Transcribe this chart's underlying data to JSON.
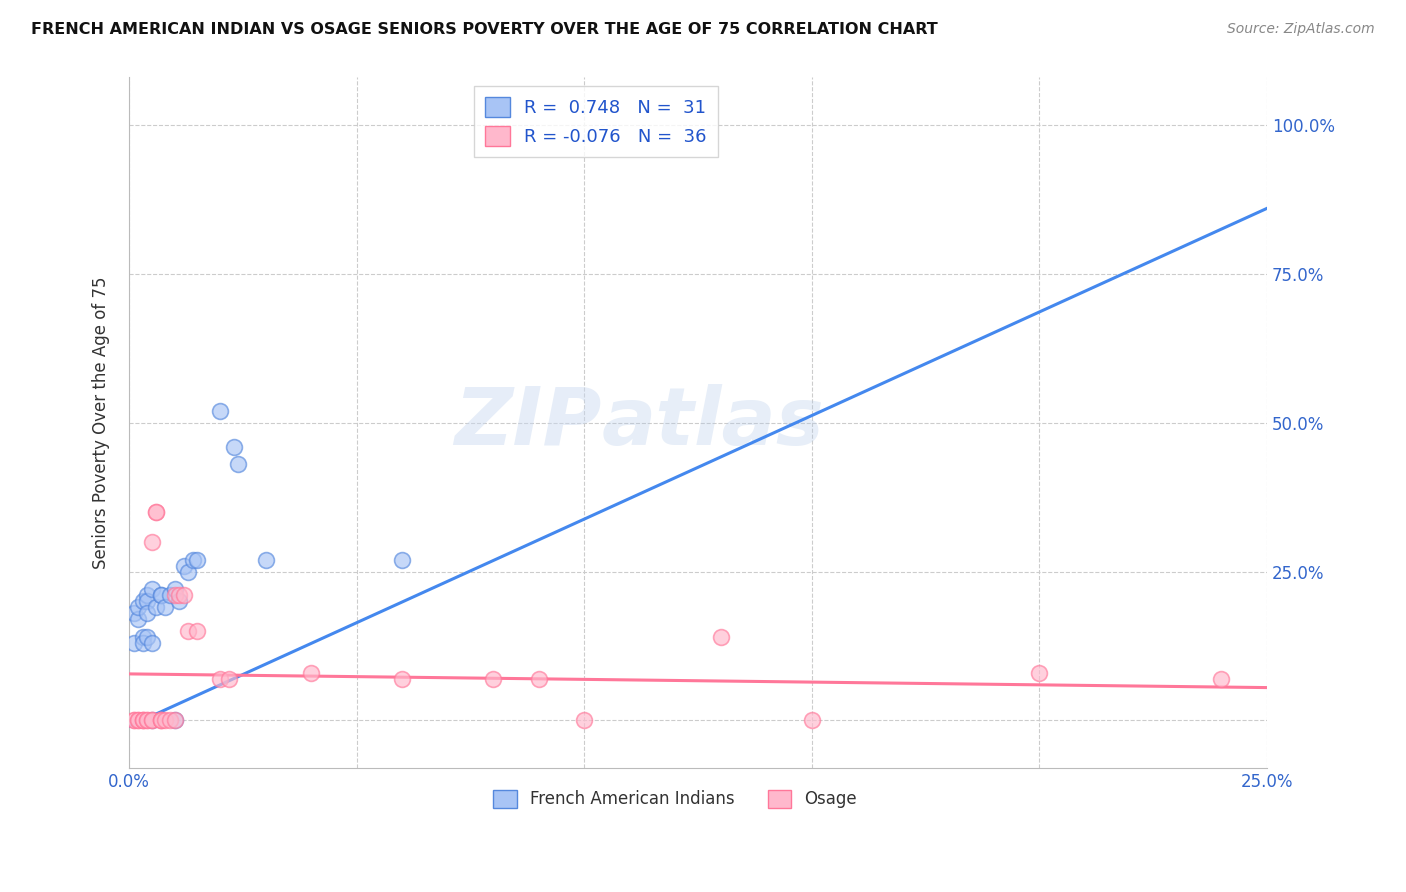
{
  "title": "FRENCH AMERICAN INDIAN VS OSAGE SENIORS POVERTY OVER THE AGE OF 75 CORRELATION CHART",
  "source": "Source: ZipAtlas.com",
  "ylabel": "Seniors Poverty Over the Age of 75",
  "xlim": [
    0.0,
    0.25
  ],
  "ylim": [
    -0.08,
    1.08
  ],
  "watermark_zip": "ZIP",
  "watermark_atlas": "atlas",
  "blue_R": 0.748,
  "blue_N": 31,
  "pink_R": -0.076,
  "pink_N": 36,
  "blue_fill": "#a8c4f5",
  "blue_edge": "#5588dd",
  "pink_fill": "#ffb8cc",
  "pink_edge": "#ff7799",
  "blue_line": "#4488ee",
  "pink_line": "#ff7799",
  "legend_label_blue": "French American Indians",
  "legend_label_pink": "Osage",
  "title_color": "#111111",
  "source_color": "#888888",
  "tick_color": "#3366cc",
  "ylabel_color": "#333333",
  "grid_color": "#cccccc",
  "blue_points": [
    [
      0.001,
      0.13
    ],
    [
      0.001,
      0.18
    ],
    [
      0.002,
      0.17
    ],
    [
      0.002,
      0.19
    ],
    [
      0.003,
      0.14
    ],
    [
      0.003,
      0.2
    ],
    [
      0.003,
      0.13
    ],
    [
      0.004,
      0.21
    ],
    [
      0.004,
      0.2
    ],
    [
      0.004,
      0.18
    ],
    [
      0.004,
      0.14
    ],
    [
      0.005,
      0.22
    ],
    [
      0.005,
      0.13
    ],
    [
      0.005,
      0.0
    ],
    [
      0.006,
      0.19
    ],
    [
      0.007,
      0.21
    ],
    [
      0.007,
      0.21
    ],
    [
      0.008,
      0.19
    ],
    [
      0.009,
      0.21
    ],
    [
      0.01,
      0.22
    ],
    [
      0.01,
      0.0
    ],
    [
      0.011,
      0.2
    ],
    [
      0.012,
      0.26
    ],
    [
      0.013,
      0.25
    ],
    [
      0.014,
      0.27
    ],
    [
      0.015,
      0.27
    ],
    [
      0.02,
      0.52
    ],
    [
      0.023,
      0.46
    ],
    [
      0.024,
      0.43
    ],
    [
      0.03,
      0.27
    ],
    [
      0.06,
      0.27
    ]
  ],
  "pink_points": [
    [
      0.001,
      0.0
    ],
    [
      0.001,
      0.0
    ],
    [
      0.002,
      0.0
    ],
    [
      0.002,
      0.0
    ],
    [
      0.003,
      0.0
    ],
    [
      0.003,
      0.0
    ],
    [
      0.003,
      0.0
    ],
    [
      0.004,
      0.0
    ],
    [
      0.004,
      0.0
    ],
    [
      0.005,
      0.0
    ],
    [
      0.005,
      0.0
    ],
    [
      0.005,
      0.3
    ],
    [
      0.006,
      0.35
    ],
    [
      0.006,
      0.35
    ],
    [
      0.007,
      0.0
    ],
    [
      0.007,
      0.0
    ],
    [
      0.007,
      0.0
    ],
    [
      0.008,
      0.0
    ],
    [
      0.009,
      0.0
    ],
    [
      0.01,
      0.0
    ],
    [
      0.01,
      0.21
    ],
    [
      0.011,
      0.21
    ],
    [
      0.012,
      0.21
    ],
    [
      0.013,
      0.15
    ],
    [
      0.015,
      0.15
    ],
    [
      0.02,
      0.07
    ],
    [
      0.022,
      0.07
    ],
    [
      0.04,
      0.08
    ],
    [
      0.06,
      0.07
    ],
    [
      0.08,
      0.07
    ],
    [
      0.09,
      0.07
    ],
    [
      0.1,
      0.0
    ],
    [
      0.13,
      0.14
    ],
    [
      0.15,
      0.0
    ],
    [
      0.2,
      0.08
    ],
    [
      0.24,
      0.07
    ]
  ],
  "blue_line_x": [
    0.0,
    0.25
  ],
  "blue_line_y": [
    -0.01,
    0.86
  ],
  "pink_line_x": [
    0.0,
    0.25
  ],
  "pink_line_y": [
    0.078,
    0.055
  ]
}
